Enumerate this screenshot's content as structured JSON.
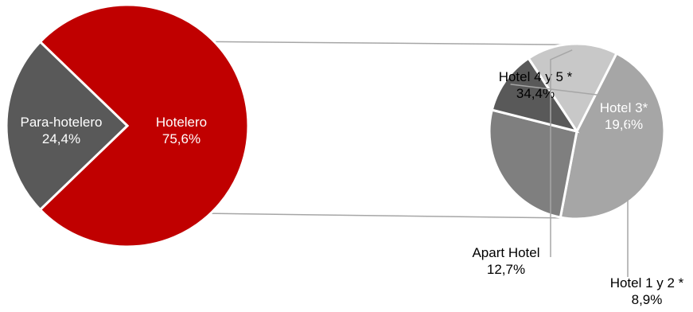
{
  "chart_data": [
    {
      "type": "pie",
      "title": "",
      "series": [
        {
          "categories": [
            "Hotelero",
            "Para-hotelero"
          ],
          "values": [
            75.6,
            24.4
          ],
          "value_labels": [
            "75,6%",
            "24,4%"
          ],
          "colors": [
            "#c00000",
            "#595959"
          ]
        }
      ]
    },
    {
      "type": "pie",
      "title": "",
      "exploded_from": "Hotelero",
      "series": [
        {
          "categories": [
            "Hotel 4 y 5 *",
            "Hotel 3*",
            "Hotel 1 y 2 *",
            "Apart Hotel"
          ],
          "values": [
            34.4,
            19.6,
            8.9,
            12.7
          ],
          "value_labels": [
            "34,4%",
            "19,6%",
            "8,9%",
            "12,7%"
          ],
          "colors": [
            "#a6a6a6",
            "#7f7f7f",
            "#595959",
            "#c8c8c8"
          ]
        }
      ]
    }
  ],
  "colors": {
    "connector": "#a6a6a6",
    "label_on_dark": "#ffffff",
    "label_on_light": "#000000"
  }
}
